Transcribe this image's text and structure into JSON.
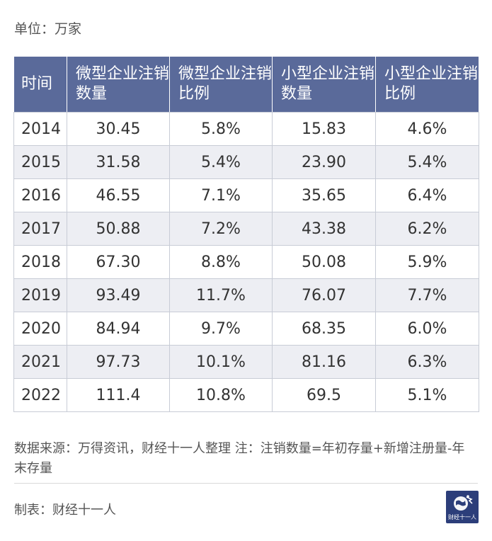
{
  "unit_label": "单位：万家",
  "chart_data": {
    "type": "table",
    "columns": [
      "时间",
      "微型企业注销数量",
      "微型企业注销比例",
      "小型企业注销数量",
      "小型企业注销比例"
    ],
    "rows": [
      [
        "2014",
        "30.45",
        "5.8%",
        "15.83",
        "4.6%"
      ],
      [
        "2015",
        "31.58",
        "5.4%",
        "23.90",
        "5.4%"
      ],
      [
        "2016",
        "46.55",
        "7.1%",
        "35.65",
        "6.4%"
      ],
      [
        "2017",
        "50.88",
        "7.2%",
        "43.38",
        "6.2%"
      ],
      [
        "2018",
        "67.30",
        "8.8%",
        "50.08",
        "5.9%"
      ],
      [
        "2019",
        "93.49",
        "11.7%",
        "76.07",
        "7.7%"
      ],
      [
        "2020",
        "84.94",
        "9.7%",
        "68.35",
        "6.0%"
      ],
      [
        "2021",
        "97.73",
        "10.1%",
        "81.16",
        "6.3%"
      ],
      [
        "2022",
        "111.4",
        "10.8%",
        "69.5",
        "5.1%"
      ]
    ]
  },
  "source_note": "数据来源：万得资讯，财经十一人整理 注：注销数量=年初存量+新增注册量-年末存量",
  "credit": "制表：财经十一人",
  "logo": {
    "text": "财经十一人",
    "background_color": "#2c3e7a",
    "icon": "globe-runner-logo"
  },
  "colors": {
    "header_background": "#5a6a9a",
    "header_text": "#ffffff",
    "stripe_row": "#edeef3",
    "grid_line": "#c8ccd6"
  }
}
